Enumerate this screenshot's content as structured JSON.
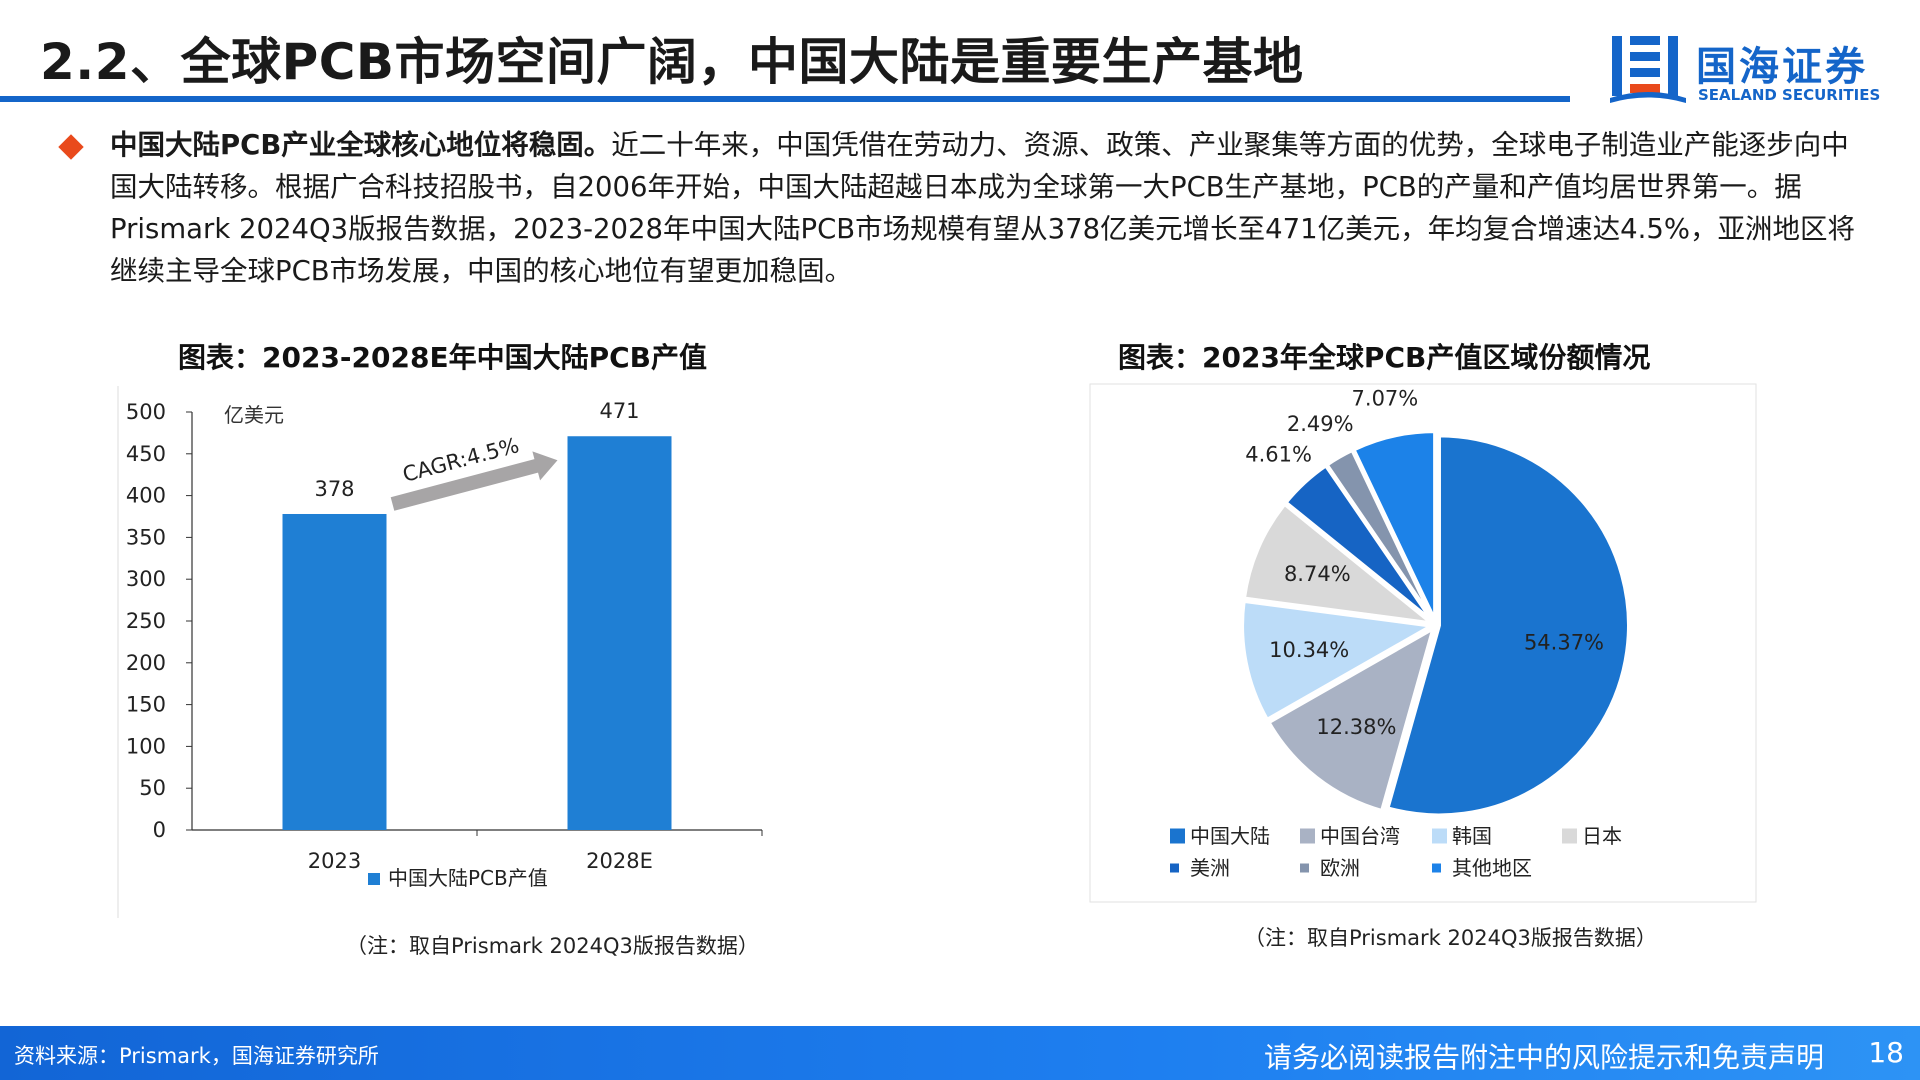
{
  "header": {
    "title": "2.2、全球PCB市场空间广阔，中国大陆是重要生产基地"
  },
  "logo": {
    "name_cn": "国海证券",
    "name_en": "SEALAND SECURITIES"
  },
  "summary": {
    "lead": "中国大陆PCB产业全球核心地位将稳固。",
    "body": "近二十年来，中国凭借在劳动力、资源、政策、产业聚集等方面的优势，全球电子制造业产能逐步向中国大陆转移。根据广合科技招股书，自2006年开始，中国大陆超越日本成为全球第一大PCB生产基地，PCB的产量和产值均居世界第一。据Prismark 2024Q3版报告数据，2023-2028年中国大陆PCB市场规模有望从378亿美元增长至471亿美元，年均复合增速达4.5%，亚洲地区将继续主导全球PCB市场发展，中国的核心地位有望更加稳固。"
  },
  "colors": {
    "brand": "#1465c9",
    "bullet": "#e94a1c",
    "bar": "#1f7fd4"
  },
  "chart_data": [
    {
      "type": "bar",
      "title": "图表：2023-2028E年中国大陆PCB产值",
      "unit": "亿美元",
      "categories": [
        "2023",
        "2028E"
      ],
      "series": [
        {
          "name": "中国大陆PCB产值",
          "values": [
            378,
            471
          ]
        }
      ],
      "ylim": [
        0,
        500
      ],
      "yticks": [
        0,
        50,
        100,
        150,
        200,
        250,
        300,
        350,
        400,
        450,
        500
      ],
      "annotation": "CAGR:4.5%",
      "note": "（注：取自Prismark 2024Q3版报告数据）"
    },
    {
      "type": "pie",
      "title": "图表：2023年全球PCB产值区域份额情况",
      "slices": [
        {
          "label": "中国大陆",
          "value": 54.37,
          "display": "54.37%",
          "color": "#1a74cf"
        },
        {
          "label": "中国台湾",
          "value": 12.38,
          "display": "12.38%",
          "color": "#a9b2c4"
        },
        {
          "label": "韩国",
          "value": 10.34,
          "display": "10.34%",
          "color": "#bcdcf8"
        },
        {
          "label": "日本",
          "value": 8.74,
          "display": "8.74%",
          "color": "#d9d9d9"
        },
        {
          "label": "美洲",
          "value": 4.61,
          "display": "4.61%",
          "color": "#1664c4"
        },
        {
          "label": "欧洲",
          "value": 2.49,
          "display": "2.49%",
          "color": "#8494ad"
        },
        {
          "label": "其他地区",
          "value": 7.07,
          "display": "7.07%",
          "color": "#1c82e8"
        }
      ],
      "note": "（注：取自Prismark 2024Q3版报告数据）"
    }
  ],
  "footer": {
    "source": "资料来源：Prismark，国海证券研究所",
    "disclaimer": "请务必阅读报告附注中的风险提示和免责声明",
    "page": "18"
  }
}
